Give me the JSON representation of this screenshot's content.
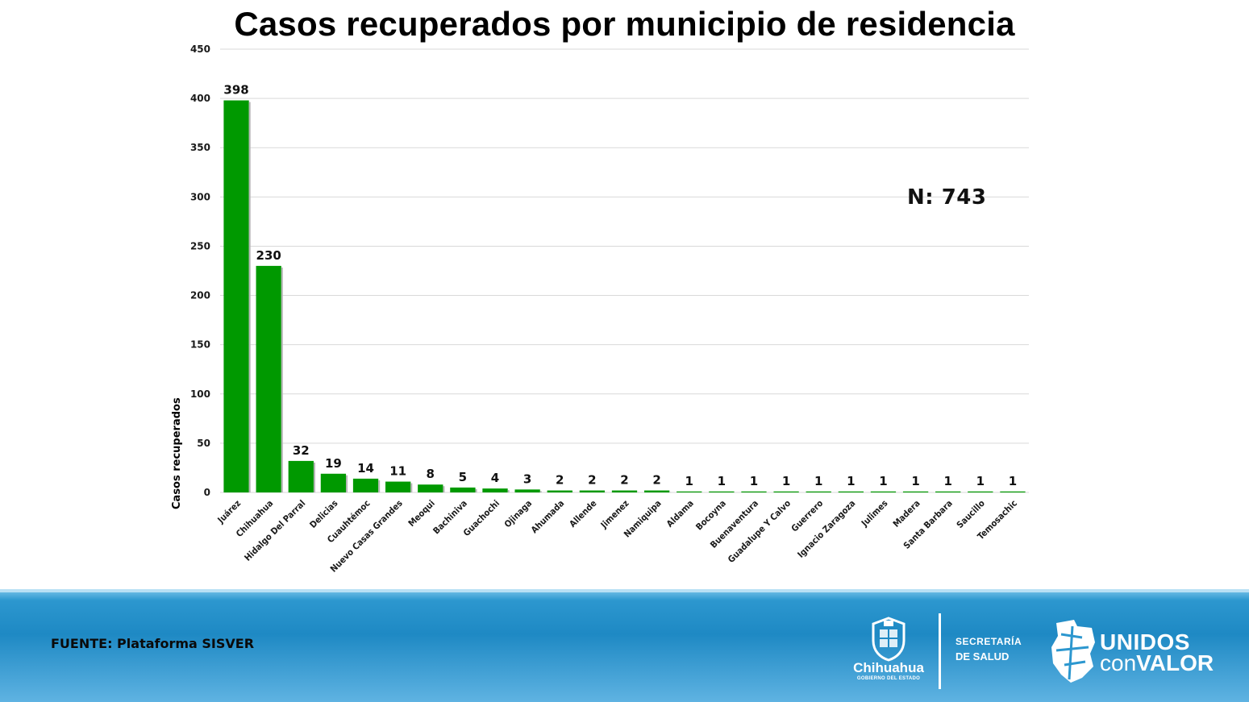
{
  "chart_data": {
    "type": "bar",
    "title": "Casos recuperados por municipio de residencia",
    "xlabel": "",
    "ylabel": "Casos recuperados",
    "ylim": [
      0,
      450
    ],
    "yticks": [
      0,
      50,
      100,
      150,
      200,
      250,
      300,
      350,
      400,
      450
    ],
    "grid": true,
    "bar_color": "#009900",
    "categories": [
      "Juárez",
      "Chihuahua",
      "Hidalgo Del Parral",
      "Delicias",
      "Cuauhtémoc",
      "Nuevo Casas Grandes",
      "Meoqui",
      "Bachiniva",
      "Guachochi",
      "Ojinaga",
      "Ahumada",
      "Allende",
      "Jimenez",
      "Namiquipa",
      "Aldama",
      "Bocoyna",
      "Buenaventura",
      "Guadalupe Y Calvo",
      "Guerrero",
      "Ignacio Zaragoza",
      "Julimes",
      "Madera",
      "Santa Barbara",
      "Saucillo",
      "Temosachic"
    ],
    "values": [
      398,
      230,
      32,
      19,
      14,
      11,
      8,
      5,
      4,
      3,
      2,
      2,
      2,
      2,
      1,
      1,
      1,
      1,
      1,
      1,
      1,
      1,
      1,
      1,
      1
    ],
    "annotation": "N: 743"
  },
  "footer": {
    "source": "FUENTE: Plataforma SISVER",
    "logo_name": "Chihuahua",
    "logo_sub": "GOBIERNO DEL ESTADO",
    "secretaria_line1": "SECRETARÍA",
    "secretaria_line2": "DE SALUD",
    "unidos_line1": "UNIDOS",
    "unidos_con": "con",
    "unidos_valor": "VALOR"
  }
}
